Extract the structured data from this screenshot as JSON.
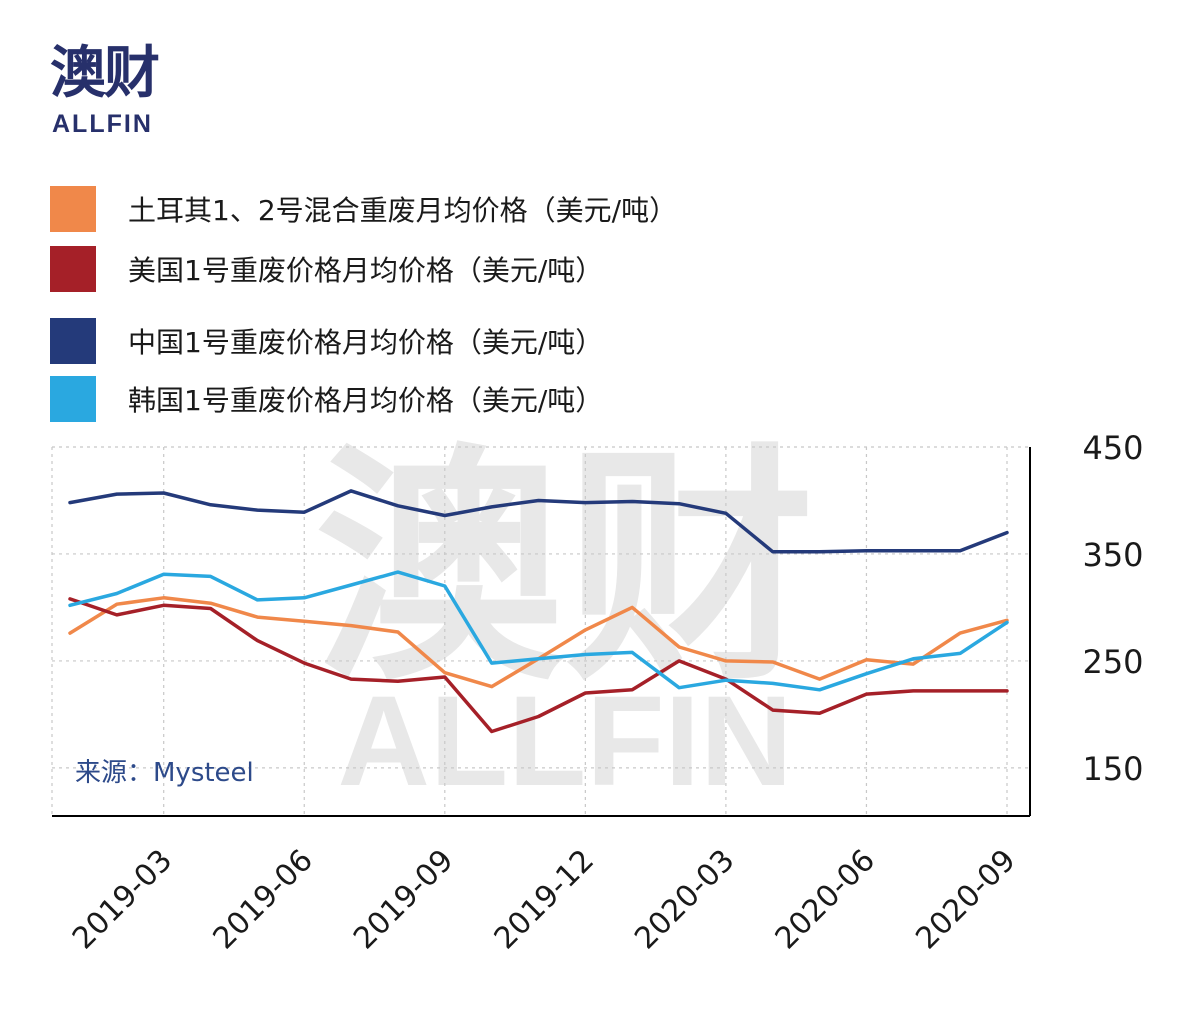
{
  "logo": {
    "cn": "澳财",
    "en": "ALLFIN"
  },
  "watermark": {
    "cn": "澳财",
    "en": "ALLFIN"
  },
  "source": "来源：Mysteel",
  "chart_data": {
    "type": "line",
    "ylim": [
      105,
      450
    ],
    "yticks": [
      150,
      250,
      350,
      450
    ],
    "x": [
      "2019-01",
      "2019-02",
      "2019-03",
      "2019-04",
      "2019-05",
      "2019-06",
      "2019-07",
      "2019-08",
      "2019-09",
      "2019-10",
      "2019-11",
      "2019-12",
      "2020-01",
      "2020-02",
      "2020-03",
      "2020-04",
      "2020-05",
      "2020-06",
      "2020-07",
      "2020-08",
      "2020-09"
    ],
    "xtick_labels": [
      "2019-03",
      "2019-06",
      "2019-09",
      "2019-12",
      "2020-03",
      "2020-06",
      "2020-09"
    ],
    "grid": true,
    "legend_position": "top",
    "series": [
      {
        "name": "土耳其1、2号混合重废月均价格（美元/吨）",
        "color": "#f0884a",
        "values": [
          276,
          303,
          309,
          304,
          291,
          287,
          283,
          277,
          239,
          226,
          252,
          279,
          300,
          263,
          250,
          249,
          233,
          251,
          247,
          276,
          288
        ]
      },
      {
        "name": "美国1号重废价格月均价格（美元/吨）",
        "color": "#a52028",
        "values": [
          308,
          293,
          302,
          299,
          269,
          248,
          233,
          231,
          235,
          184,
          198,
          220,
          223,
          250,
          233,
          204,
          201,
          219,
          222,
          222,
          222
        ]
      },
      {
        "name": "中国1号重废价格月均价格（美元/吨）",
        "color": "#243a7a",
        "values": [
          398,
          406,
          407,
          396,
          391,
          389,
          409,
          395,
          386,
          394,
          400,
          398,
          399,
          397,
          388,
          352,
          352,
          353,
          353,
          353,
          370
        ]
      },
      {
        "name": "韩国1号重废价格月均价格（美元/吨）",
        "color": "#2aa8e0",
        "values": [
          302,
          313,
          331,
          329,
          307,
          309,
          321,
          333,
          320,
          248,
          252,
          256,
          258,
          225,
          232,
          229,
          223,
          238,
          252,
          257,
          286
        ]
      }
    ]
  }
}
